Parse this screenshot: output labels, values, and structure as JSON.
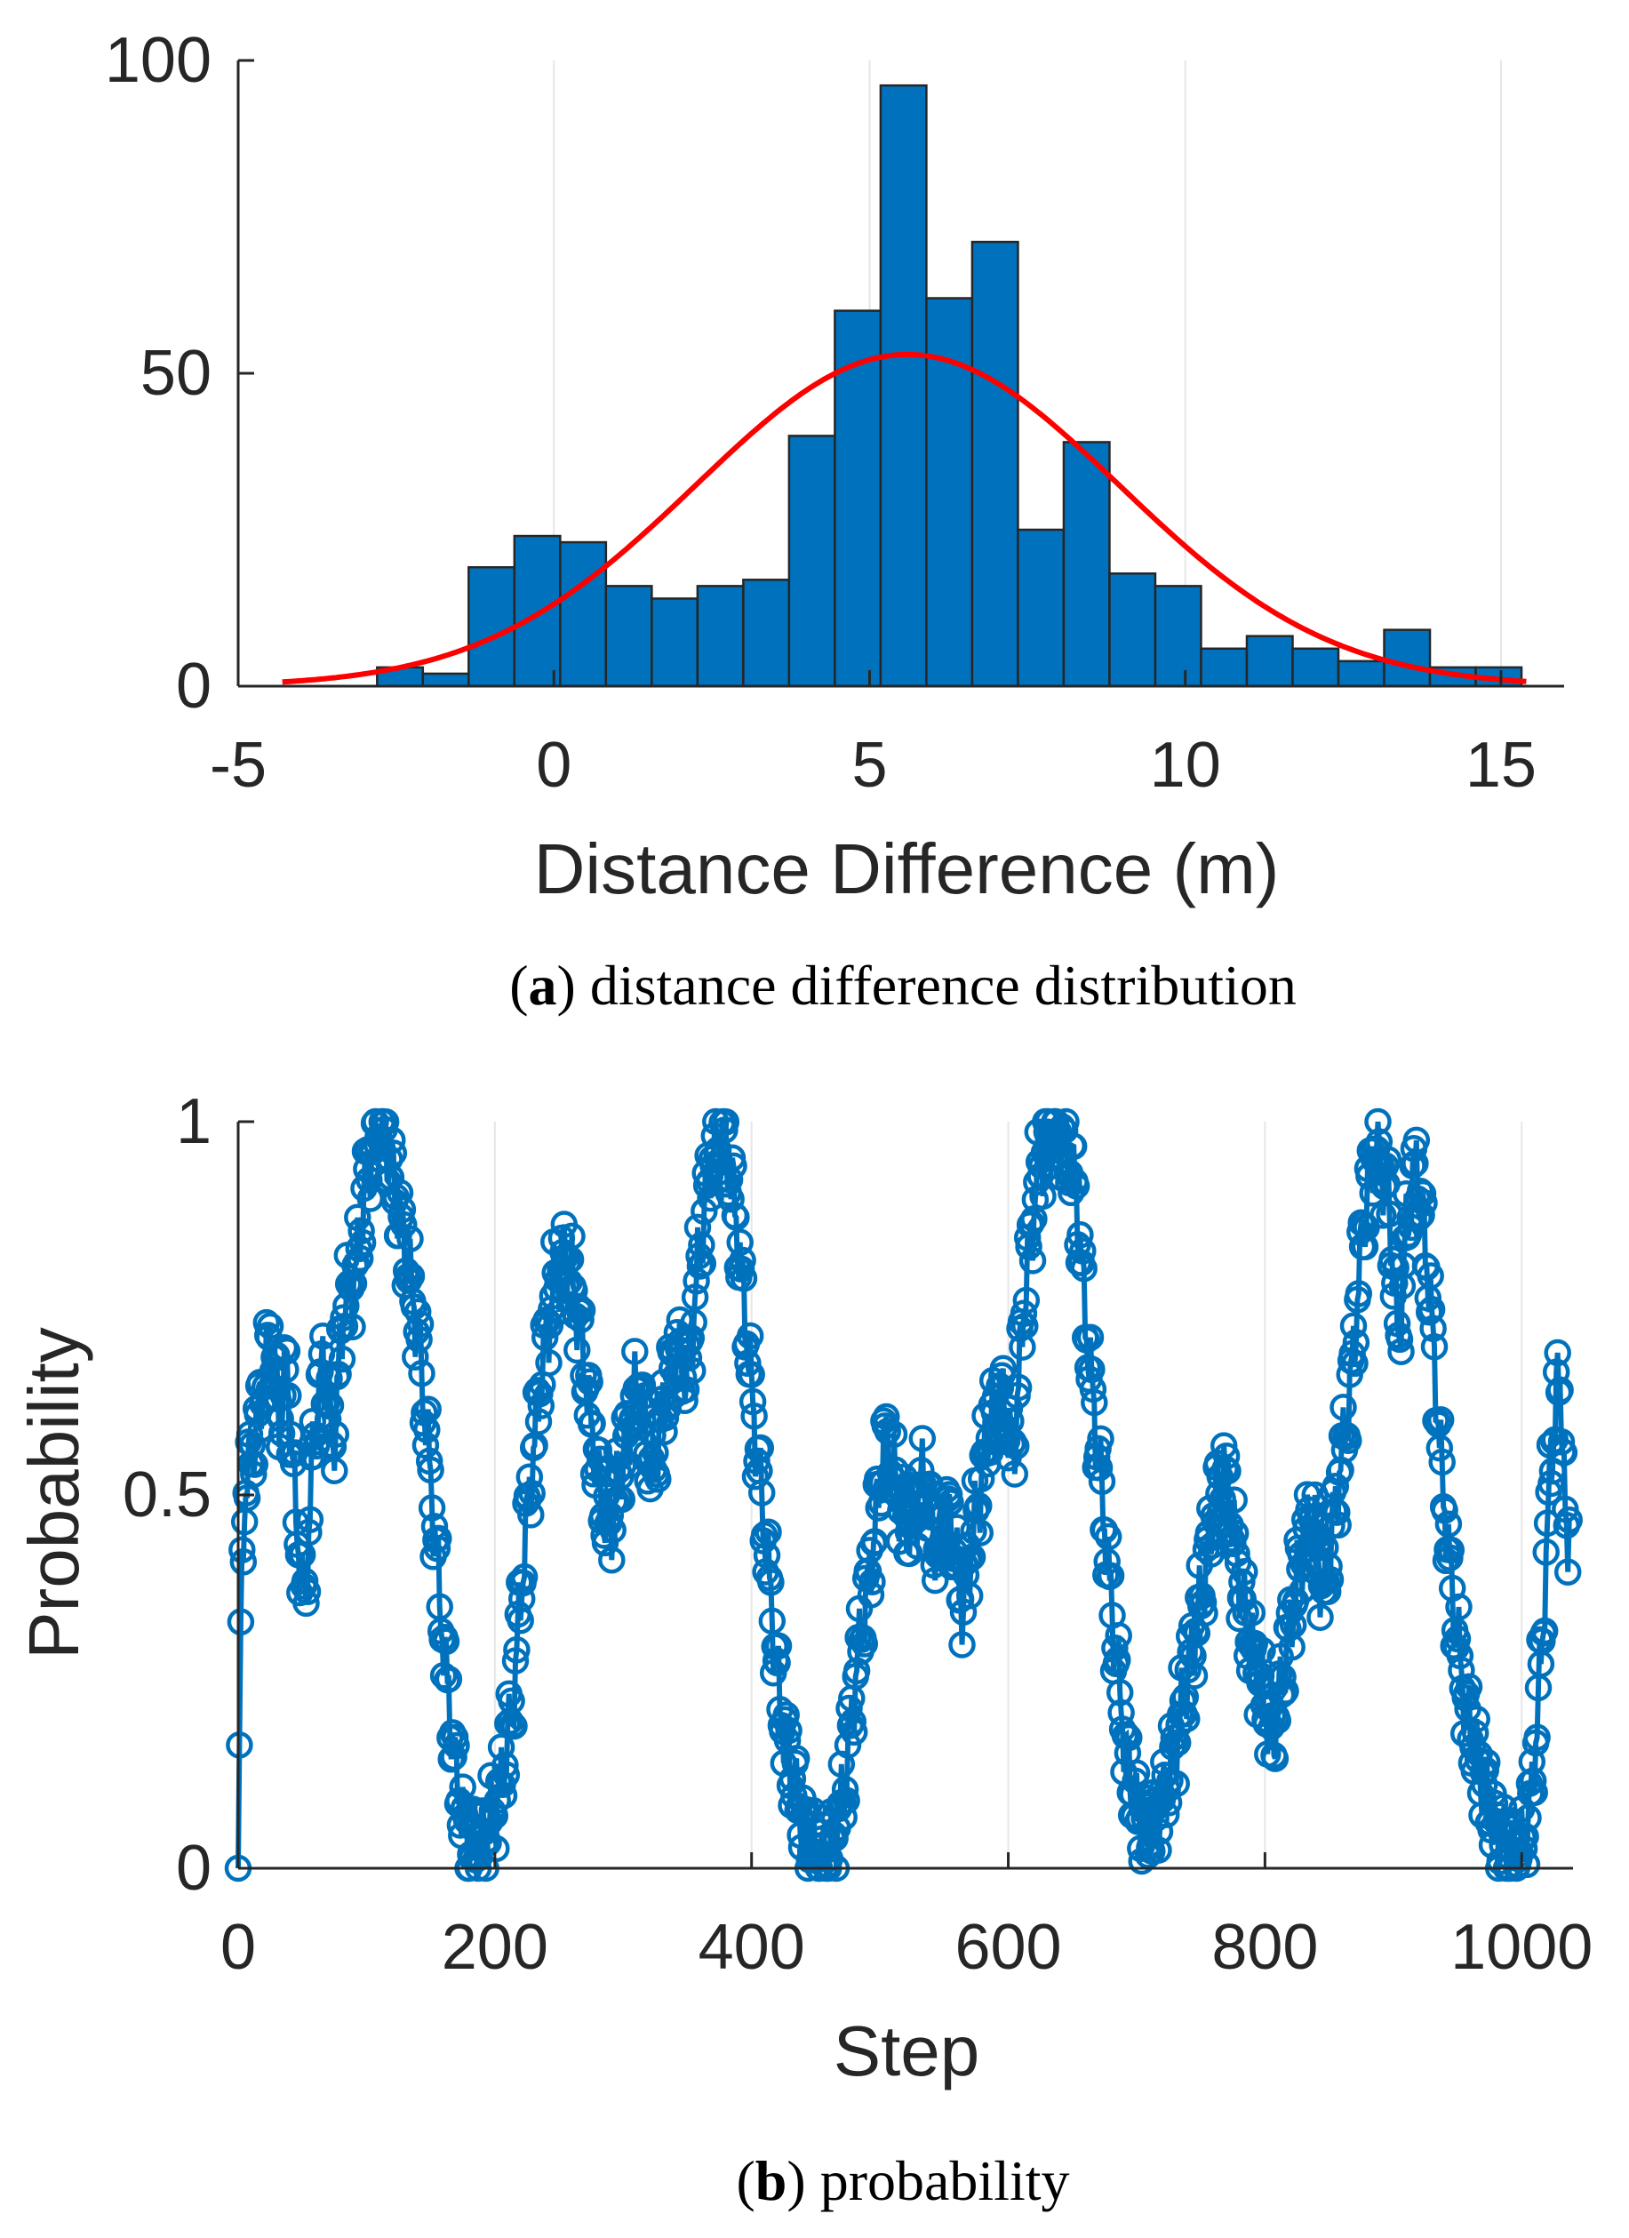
{
  "chart_data": [
    {
      "type": "bar",
      "subplot": "a",
      "caption_letter": "a",
      "caption_text": "distance difference distribution",
      "xlabel": "Distance Difference (m)",
      "ylabel": "",
      "xlim": [
        -5,
        16
      ],
      "ylim": [
        0,
        100
      ],
      "xticks": [
        "-5",
        "0",
        "5",
        "10",
        "15"
      ],
      "yticks": [
        "0",
        "50",
        "100"
      ],
      "grid": "vertical",
      "bar_color": "#0072bd",
      "fit_color": "#ff0000",
      "bin_width": 0.725,
      "bin_edges_start": -2.8,
      "values": [
        3,
        2,
        19,
        24,
        23,
        16,
        14,
        16,
        17,
        40,
        60,
        96,
        62,
        71,
        25,
        39,
        18,
        16,
        6,
        8,
        6,
        4,
        9,
        3,
        3
      ],
      "fit": {
        "type": "normal",
        "mean": 5.6,
        "std": 3.35,
        "peak": 53,
        "x_range": [
          -4.3,
          15.4
        ]
      }
    },
    {
      "type": "line",
      "subplot": "b",
      "caption_letter": "b",
      "caption_text": "probability",
      "xlabel": "Step",
      "ylabel": "Probability",
      "xlim": [
        0,
        1040
      ],
      "ylim": [
        0,
        1
      ],
      "xticks": [
        "0",
        "200",
        "400",
        "600",
        "800",
        "1000"
      ],
      "yticks": [
        "0",
        "0.5",
        "1"
      ],
      "grid": "vertical",
      "line_color": "#0072bd",
      "marker": "circle",
      "step_range": [
        0,
        1037
      ],
      "anchors": [
        [
          0,
          0
        ],
        [
          2,
          0.33
        ],
        [
          5,
          0.5
        ],
        [
          12,
          0.57
        ],
        [
          20,
          0.65
        ],
        [
          25,
          0.72
        ],
        [
          32,
          0.6
        ],
        [
          38,
          0.67
        ],
        [
          45,
          0.47
        ],
        [
          52,
          0.35
        ],
        [
          58,
          0.55
        ],
        [
          66,
          0.68
        ],
        [
          74,
          0.56
        ],
        [
          82,
          0.75
        ],
        [
          92,
          0.8
        ],
        [
          100,
          0.93
        ],
        [
          110,
          1.0
        ],
        [
          118,
          0.95
        ],
        [
          130,
          0.83
        ],
        [
          140,
          0.72
        ],
        [
          150,
          0.52
        ],
        [
          160,
          0.3
        ],
        [
          170,
          0.12
        ],
        [
          180,
          0.02
        ],
        [
          192,
          0.04
        ],
        [
          204,
          0.1
        ],
        [
          214,
          0.22
        ],
        [
          224,
          0.45
        ],
        [
          236,
          0.66
        ],
        [
          246,
          0.78
        ],
        [
          256,
          0.83
        ],
        [
          266,
          0.73
        ],
        [
          276,
          0.58
        ],
        [
          288,
          0.44
        ],
        [
          300,
          0.55
        ],
        [
          312,
          0.66
        ],
        [
          322,
          0.52
        ],
        [
          332,
          0.62
        ],
        [
          342,
          0.7
        ],
        [
          350,
          0.65
        ],
        [
          358,
          0.8
        ],
        [
          368,
          0.95
        ],
        [
          378,
          0.98
        ],
        [
          386,
          0.9
        ],
        [
          394,
          0.76
        ],
        [
          402,
          0.6
        ],
        [
          412,
          0.42
        ],
        [
          422,
          0.22
        ],
        [
          432,
          0.12
        ],
        [
          442,
          0.05
        ],
        [
          452,
          0.01
        ],
        [
          462,
          0.02
        ],
        [
          472,
          0.1
        ],
        [
          482,
          0.27
        ],
        [
          494,
          0.42
        ],
        [
          504,
          0.58
        ],
        [
          514,
          0.5
        ],
        [
          524,
          0.45
        ],
        [
          534,
          0.53
        ],
        [
          544,
          0.42
        ],
        [
          554,
          0.48
        ],
        [
          564,
          0.35
        ],
        [
          574,
          0.46
        ],
        [
          584,
          0.58
        ],
        [
          594,
          0.64
        ],
        [
          604,
          0.55
        ],
        [
          612,
          0.75
        ],
        [
          622,
          0.92
        ],
        [
          632,
          0.99
        ],
        [
          642,
          0.98
        ],
        [
          652,
          0.92
        ],
        [
          662,
          0.7
        ],
        [
          672,
          0.52
        ],
        [
          682,
          0.32
        ],
        [
          692,
          0.15
        ],
        [
          702,
          0.06
        ],
        [
          712,
          0.05
        ],
        [
          722,
          0.1
        ],
        [
          732,
          0.18
        ],
        [
          742,
          0.28
        ],
        [
          752,
          0.38
        ],
        [
          760,
          0.48
        ],
        [
          768,
          0.54
        ],
        [
          776,
          0.44
        ],
        [
          786,
          0.32
        ],
        [
          796,
          0.25
        ],
        [
          806,
          0.17
        ],
        [
          816,
          0.28
        ],
        [
          826,
          0.4
        ],
        [
          836,
          0.48
        ],
        [
          846,
          0.36
        ],
        [
          856,
          0.5
        ],
        [
          866,
          0.63
        ],
        [
          876,
          0.85
        ],
        [
          886,
          0.98
        ],
        [
          896,
          0.9
        ],
        [
          904,
          0.7
        ],
        [
          910,
          0.85
        ],
        [
          918,
          0.95
        ],
        [
          928,
          0.78
        ],
        [
          938,
          0.52
        ],
        [
          948,
          0.33
        ],
        [
          958,
          0.2
        ],
        [
          968,
          0.13
        ],
        [
          978,
          0.06
        ],
        [
          990,
          0.02
        ],
        [
          1000,
          0.02
        ],
        [
          1008,
          0.1
        ],
        [
          1016,
          0.3
        ],
        [
          1022,
          0.52
        ],
        [
          1028,
          0.65
        ],
        [
          1032,
          0.6
        ],
        [
          1036,
          0.36
        ],
        [
          1037,
          0.5
        ]
      ]
    }
  ]
}
